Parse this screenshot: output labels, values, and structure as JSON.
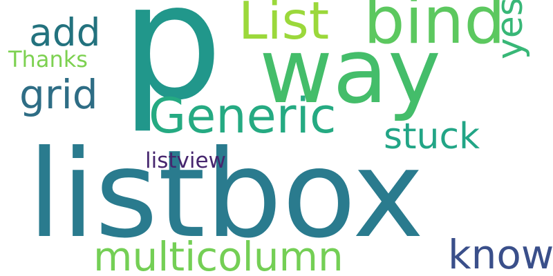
{
  "background": "#ffffff",
  "words": [
    {
      "id": "listbox",
      "text": "listbox",
      "color": "#2a7b8e"
    },
    {
      "id": "p",
      "text": "p",
      "color": "#21978b"
    },
    {
      "id": "way",
      "text": "way",
      "color": "#44bd6a"
    },
    {
      "id": "bind",
      "text": "bind",
      "color": "#5cc85f"
    },
    {
      "id": "list",
      "text": "List",
      "color": "#9bd83b"
    },
    {
      "id": "generic",
      "text": "Generic",
      "color": "#25aa82"
    },
    {
      "id": "stuck",
      "text": "stuck",
      "color": "#22a586"
    },
    {
      "id": "yes",
      "text": "yes",
      "color": "#38b777"
    },
    {
      "id": "add",
      "text": "add",
      "color": "#23727e"
    },
    {
      "id": "grid",
      "text": "grid",
      "color": "#2e6d85"
    },
    {
      "id": "thanks",
      "text": "Thanks",
      "color": "#7dd151"
    },
    {
      "id": "listview",
      "text": "listview",
      "color": "#46266e"
    },
    {
      "id": "multicolumn",
      "text": "multicolumn",
      "color": "#74cf55"
    },
    {
      "id": "know",
      "text": "know",
      "color": "#3a4f8a"
    }
  ]
}
